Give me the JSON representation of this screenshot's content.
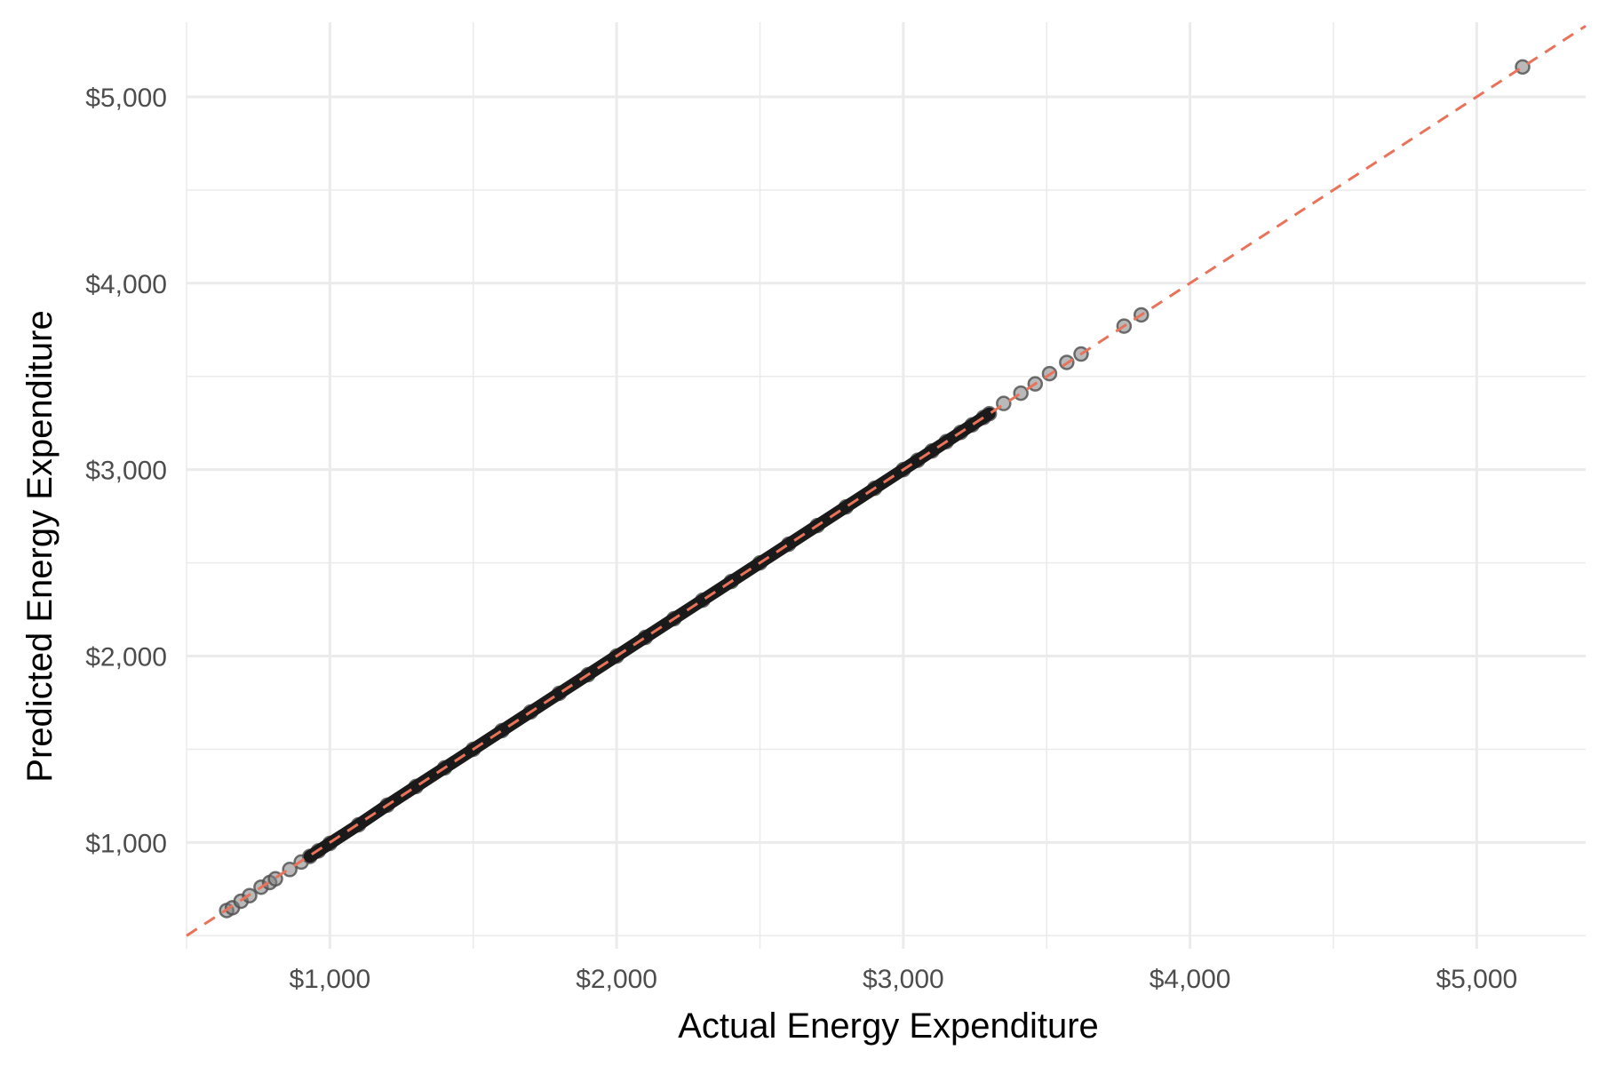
{
  "chart_data": {
    "type": "scatter",
    "title": "",
    "xlabel": "Actual Energy Expenditure",
    "ylabel": "Predicted Energy Expenditure",
    "xlim": [
      500,
      5380
    ],
    "ylim": [
      430,
      5400
    ],
    "x_ticks": [
      1000,
      2000,
      3000,
      4000,
      5000
    ],
    "x_tick_labels": [
      "$1,000",
      "$2,000",
      "$3,000",
      "$4,000",
      "$5,000"
    ],
    "y_ticks": [
      1000,
      2000,
      3000,
      4000,
      5000
    ],
    "y_tick_labels": [
      "$1,000",
      "$2,000",
      "$3,000",
      "$4,000",
      "$5,000"
    ],
    "grid": true,
    "legend": "none",
    "reference_line": {
      "type": "identity",
      "style": "dashed",
      "color": "#e8735a"
    },
    "point_color": "#808080",
    "point_stroke": "#4d4d4d",
    "series": [
      {
        "points": [
          [
            640,
            635
          ],
          [
            660,
            650
          ],
          [
            690,
            685
          ],
          [
            720,
            715
          ],
          [
            760,
            760
          ],
          [
            790,
            785
          ],
          [
            810,
            805
          ],
          [
            860,
            855
          ],
          [
            900,
            895
          ],
          [
            930,
            925
          ],
          [
            960,
            955
          ],
          [
            1000,
            995
          ],
          [
            1100,
            1095
          ],
          [
            1200,
            1200
          ],
          [
            1300,
            1300
          ],
          [
            1400,
            1400
          ],
          [
            1500,
            1500
          ],
          [
            1600,
            1600
          ],
          [
            1700,
            1700
          ],
          [
            1800,
            1800
          ],
          [
            1900,
            1900
          ],
          [
            2000,
            2000
          ],
          [
            2100,
            2100
          ],
          [
            2200,
            2200
          ],
          [
            2300,
            2300
          ],
          [
            2400,
            2400
          ],
          [
            2500,
            2500
          ],
          [
            2600,
            2600
          ],
          [
            2700,
            2700
          ],
          [
            2800,
            2800
          ],
          [
            2900,
            2900
          ],
          [
            3000,
            3000
          ],
          [
            3050,
            3050
          ],
          [
            3100,
            3100
          ],
          [
            3150,
            3150
          ],
          [
            3200,
            3200
          ],
          [
            3240,
            3240
          ],
          [
            3280,
            3280
          ],
          [
            3300,
            3300
          ],
          [
            3350,
            3355
          ],
          [
            3410,
            3410
          ],
          [
            3460,
            3460
          ],
          [
            3510,
            3515
          ],
          [
            3570,
            3575
          ],
          [
            3620,
            3620
          ],
          [
            3770,
            3770
          ],
          [
            3830,
            3830
          ],
          [
            5160,
            5160
          ]
        ]
      }
    ]
  }
}
